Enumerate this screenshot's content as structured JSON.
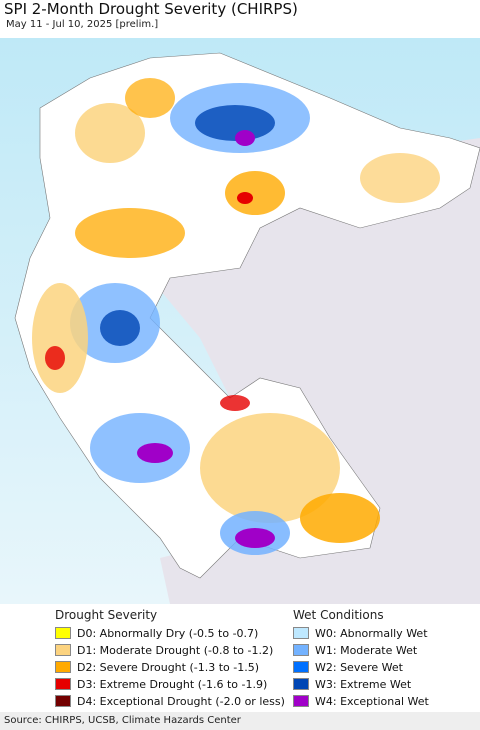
{
  "header": {
    "title": "SPI 2-Month Drought Severity (CHIRPS)",
    "subtitle": "May 11 - Jul 10, 2025 [prelim.]"
  },
  "legend": {
    "groups": [
      {
        "title": "Drought Severity",
        "items": [
          {
            "label": "D0: Abnormally Dry (-0.5 to -0.7)",
            "color": "#ffff00"
          },
          {
            "label": "D1: Moderate Drought (-0.8 to -1.2)",
            "color": "#fcd37f"
          },
          {
            "label": "D2: Severe Drought (-1.3 to -1.5)",
            "color": "#ffaa00"
          },
          {
            "label": "D3: Extreme Drought (-1.6 to -1.9)",
            "color": "#e60000"
          },
          {
            "label": "D4: Exceptional Drought (-2.0 or less)",
            "color": "#730000"
          }
        ]
      },
      {
        "title": "Wet Conditions",
        "items": [
          {
            "label": "W0: Abnormally Wet",
            "color": "#bee8ff"
          },
          {
            "label": "W1: Moderate Wet",
            "color": "#73b2ff"
          },
          {
            "label": "W2: Severe Wet",
            "color": "#0070ff"
          },
          {
            "label": "W3: Extreme Wet",
            "color": "#0046b4"
          },
          {
            "label": "W4: Exceptional Wet",
            "color": "#a000c8"
          }
        ]
      }
    ]
  },
  "footer": {
    "source": "Source: CHIRPS, UCSB, Climate Hazards Center"
  }
}
